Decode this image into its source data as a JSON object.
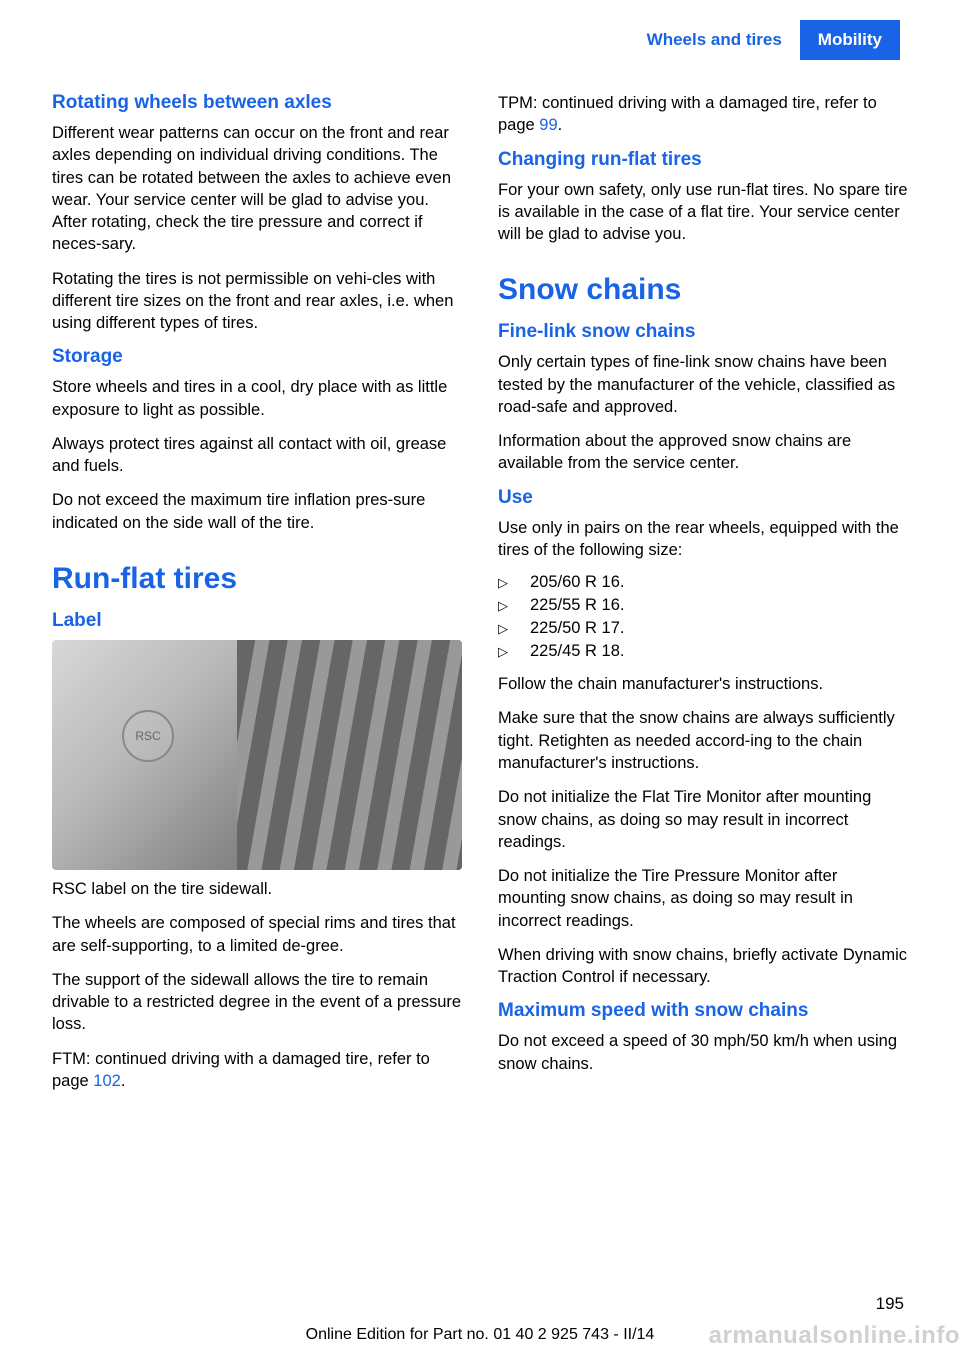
{
  "header": {
    "left_tab": "Wheels and tires",
    "right_tab": "Mobility"
  },
  "left_col": {
    "h_rotating": "Rotating wheels between axles",
    "p_rotating1": "Different wear patterns can occur on the front and rear axles depending on individual driving conditions. The tires can be rotated between the axles to achieve even wear. Your service center will be glad to advise you. After rotating, check the tire pressure and correct if neces‐sary.",
    "p_rotating2": "Rotating the tires is not permissible on vehi‐cles with different tire sizes on the front and rear axles, i.e. when using different types of tires.",
    "h_storage": "Storage",
    "p_storage1": "Store wheels and tires in a cool, dry place with as little exposure to light as possible.",
    "p_storage2": "Always protect tires against all contact with oil, grease and fuels.",
    "p_storage3": "Do not exceed the maximum tire inflation pres‐sure indicated on the side wall of the tire.",
    "h_runflat": "Run-flat tires",
    "h_label": "Label",
    "p_label_caption": "RSC label on the tire sidewall.",
    "p_label1": "The wheels are composed of special rims and tires that are self-supporting, to a limited de‐gree.",
    "p_label2": "The support of the sidewall allows the tire to remain drivable to a restricted degree in the event of a pressure loss.",
    "p_ftm_pre": "FTM: continued driving with a damaged tire, refer to page ",
    "p_ftm_page": "102",
    "p_ftm_post": "."
  },
  "right_col": {
    "p_tpm_pre": "TPM: continued driving with a damaged tire, refer to page ",
    "p_tpm_page": "99",
    "p_tpm_post": ".",
    "h_changing": "Changing run-flat tires",
    "p_changing": "For your own safety, only use run-flat tires. No spare tire is available in the case of a flat tire. Your service center will be glad to advise you.",
    "h_snow": "Snow chains",
    "h_finelink": "Fine-link snow chains",
    "p_fine1": "Only certain types of fine-link snow chains have been tested by the manufacturer of the vehicle, classified as road-safe and approved.",
    "p_fine2": "Information about the approved snow chains are available from the service center.",
    "h_use": "Use",
    "p_use1": "Use only in pairs on the rear wheels, equipped with the tires of the following size:",
    "sizes": [
      "205/60 R 16.",
      "225/55 R 16.",
      "225/50 R 17.",
      "225/45 R 18."
    ],
    "p_use2": "Follow the chain manufacturer's instructions.",
    "p_use3": "Make sure that the snow chains are always sufficiently tight. Retighten as needed accord‐ing to the chain manufacturer's instructions.",
    "p_use4": "Do not initialize the Flat Tire Monitor after mounting snow chains, as doing so may result in incorrect readings.",
    "p_use5": "Do not initialize the Tire Pressure Monitor after mounting snow chains, as doing so may result in incorrect readings.",
    "p_use6": "When driving with snow chains, briefly activate Dynamic Traction Control if necessary.",
    "h_maxspeed": "Maximum speed with snow chains",
    "p_maxspeed": "Do not exceed a speed of 30 mph/50 km/h when using snow chains."
  },
  "page_number": "195",
  "footer": "Online Edition for Part no. 01 40 2 925 743 - II/14",
  "watermark": "armanualsonline.info"
}
